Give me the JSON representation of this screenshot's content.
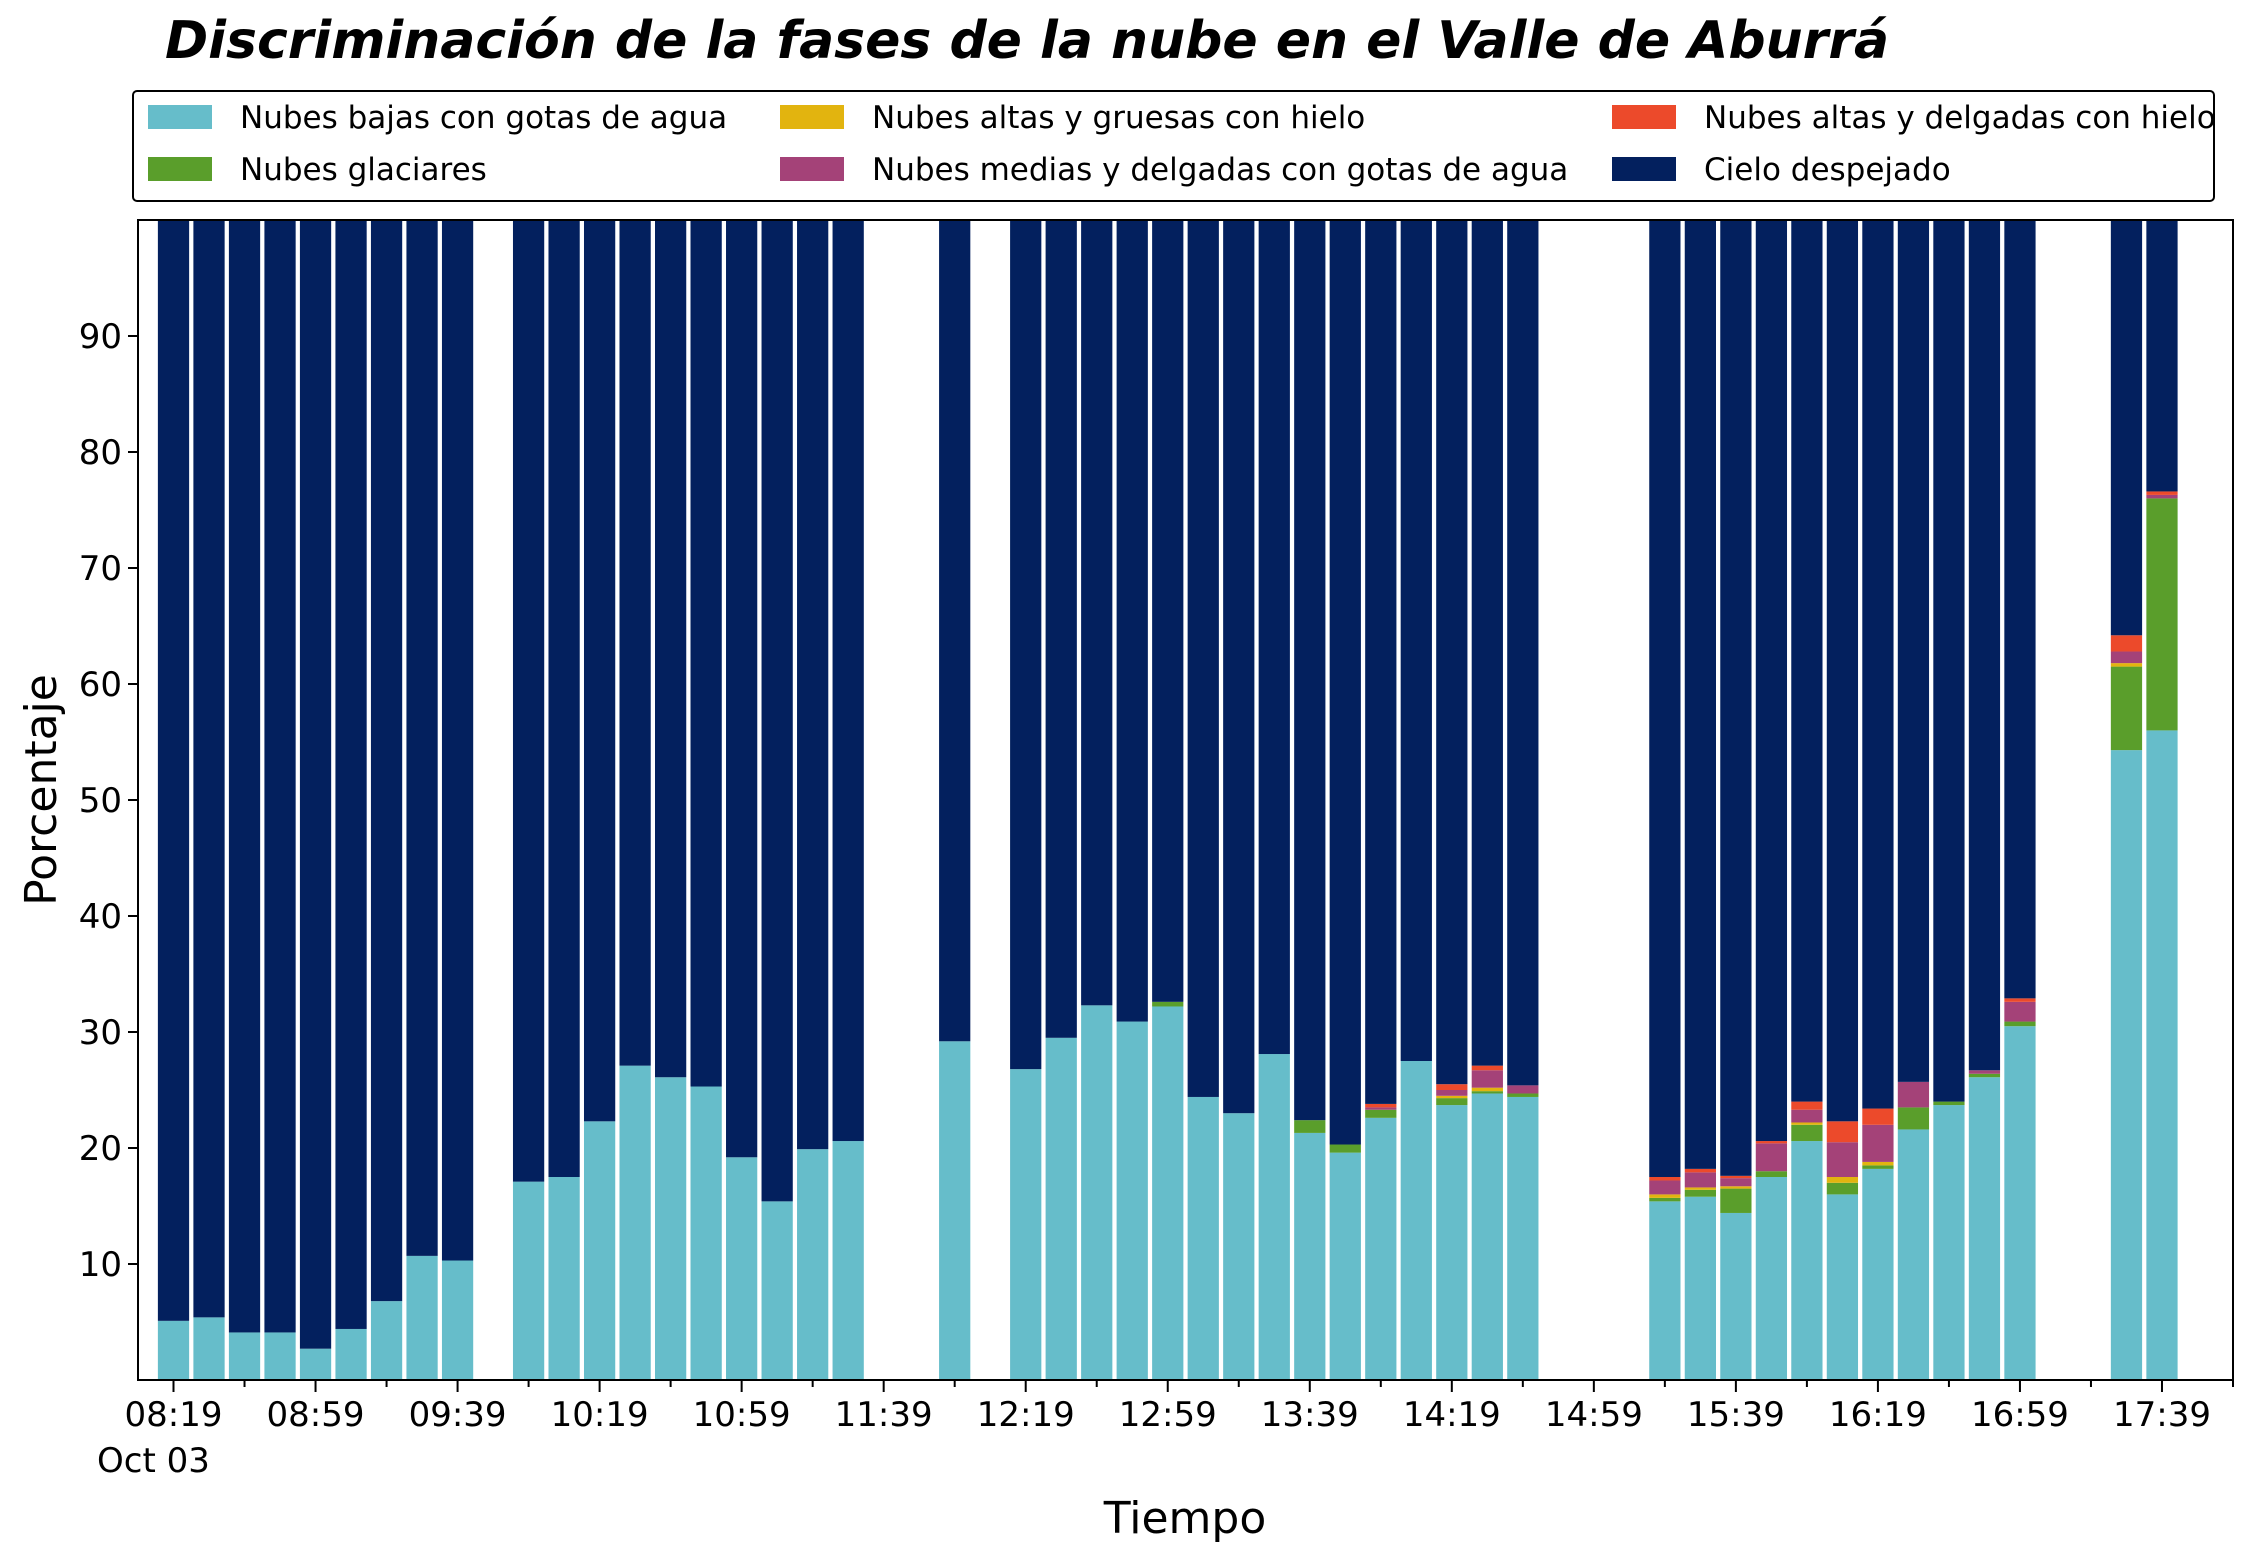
{
  "chart_data": {
    "type": "bar",
    "stacked": true,
    "title": "Discriminación de la fases de la nube en el Valle de Aburrá",
    "xlabel": "Tiempo",
    "ylabel": "Porcentaje",
    "ylim": [
      0,
      100
    ],
    "y_ticks": [
      10,
      20,
      30,
      40,
      50,
      60,
      70,
      80,
      90
    ],
    "x_tick_labels": [
      "08:19",
      "08:59",
      "09:39",
      "10:19",
      "10:59",
      "11:39",
      "12:19",
      "12:59",
      "13:39",
      "14:19",
      "14:59",
      "15:39",
      "16:19",
      "16:59",
      "17:39"
    ],
    "x_date_label": "Oct 03",
    "x_range": [
      "08:09",
      "17:59"
    ],
    "interval_minutes": 10,
    "grid": false,
    "legend_position": "top",
    "legend_columns": 3,
    "series_colors": [
      "#66bdca",
      "#5a9e2b",
      "#e2b40f",
      "#a44278",
      "#ec4a2b",
      "#03205e"
    ],
    "series_names": [
      "Nubes bajas con gotas de agua",
      "Nubes glaciares",
      "Nubes altas y gruesas con hielo",
      "Nubes medias y delgadas con gotas de agua",
      "Nubes altas y delgadas con hielo",
      "Cielo despejado"
    ],
    "legend_order": [
      0,
      2,
      4,
      1,
      3,
      5
    ],
    "bars": [
      {
        "t": "08:19",
        "v": [
          5.1,
          0,
          0,
          0,
          0,
          94.9
        ]
      },
      {
        "t": "08:29",
        "v": [
          5.4,
          0,
          0,
          0,
          0,
          94.6
        ]
      },
      {
        "t": "08:39",
        "v": [
          4.1,
          0,
          0,
          0,
          0,
          95.9
        ]
      },
      {
        "t": "08:49",
        "v": [
          4.1,
          0,
          0,
          0,
          0,
          95.9
        ]
      },
      {
        "t": "08:59",
        "v": [
          2.7,
          0,
          0,
          0,
          0,
          97.3
        ]
      },
      {
        "t": "09:09",
        "v": [
          4.4,
          0,
          0,
          0,
          0,
          95.6
        ]
      },
      {
        "t": "09:19",
        "v": [
          6.8,
          0,
          0,
          0,
          0,
          93.2
        ]
      },
      {
        "t": "09:29",
        "v": [
          10.7,
          0,
          0,
          0,
          0,
          89.3
        ]
      },
      {
        "t": "09:39",
        "v": [
          10.3,
          0,
          0,
          0,
          0,
          89.7
        ]
      },
      {
        "t": "09:59",
        "v": [
          17.1,
          0,
          0,
          0,
          0,
          82.9
        ]
      },
      {
        "t": "10:09",
        "v": [
          17.5,
          0,
          0,
          0,
          0,
          82.5
        ]
      },
      {
        "t": "10:19",
        "v": [
          22.3,
          0,
          0,
          0,
          0,
          77.7
        ]
      },
      {
        "t": "10:29",
        "v": [
          27.1,
          0,
          0,
          0,
          0,
          72.9
        ]
      },
      {
        "t": "10:39",
        "v": [
          26.1,
          0,
          0,
          0,
          0,
          73.9
        ]
      },
      {
        "t": "10:49",
        "v": [
          25.3,
          0,
          0,
          0,
          0,
          74.7
        ]
      },
      {
        "t": "10:59",
        "v": [
          19.2,
          0,
          0,
          0,
          0,
          80.8
        ]
      },
      {
        "t": "11:09",
        "v": [
          15.4,
          0,
          0,
          0,
          0,
          84.6
        ]
      },
      {
        "t": "11:19",
        "v": [
          19.9,
          0,
          0,
          0,
          0,
          80.1
        ]
      },
      {
        "t": "11:29",
        "v": [
          20.6,
          0,
          0,
          0,
          0,
          79.4
        ]
      },
      {
        "t": "11:59",
        "v": [
          29.2,
          0,
          0,
          0,
          0,
          70.8
        ]
      },
      {
        "t": "12:19",
        "v": [
          26.8,
          0,
          0,
          0,
          0,
          73.2
        ]
      },
      {
        "t": "12:29",
        "v": [
          29.5,
          0,
          0,
          0,
          0,
          70.5
        ]
      },
      {
        "t": "12:39",
        "v": [
          32.3,
          0,
          0,
          0,
          0,
          67.7
        ]
      },
      {
        "t": "12:49",
        "v": [
          30.9,
          0,
          0,
          0,
          0,
          69.1
        ]
      },
      {
        "t": "12:59",
        "v": [
          32.2,
          0.4,
          0,
          0,
          0,
          67.4
        ]
      },
      {
        "t": "13:09",
        "v": [
          24.4,
          0,
          0,
          0,
          0,
          75.6
        ]
      },
      {
        "t": "13:19",
        "v": [
          23.0,
          0,
          0,
          0,
          0,
          77.0
        ]
      },
      {
        "t": "13:29",
        "v": [
          28.1,
          0,
          0,
          0,
          0,
          71.9
        ]
      },
      {
        "t": "13:39",
        "v": [
          21.3,
          1.1,
          0,
          0,
          0,
          77.6
        ]
      },
      {
        "t": "13:49",
        "v": [
          19.6,
          0.7,
          0,
          0,
          0,
          79.7
        ]
      },
      {
        "t": "13:59",
        "v": [
          22.6,
          0.7,
          0,
          0.2,
          0.3,
          76.2
        ]
      },
      {
        "t": "14:09",
        "v": [
          27.5,
          0,
          0,
          0,
          0,
          72.5
        ]
      },
      {
        "t": "14:19",
        "v": [
          23.7,
          0.6,
          0.2,
          0.5,
          0.5,
          74.5
        ]
      },
      {
        "t": "14:29",
        "v": [
          24.7,
          0.2,
          0.3,
          1.5,
          0.4,
          72.9
        ]
      },
      {
        "t": "14:39",
        "v": [
          24.4,
          0.3,
          0,
          0.7,
          0,
          74.6
        ]
      },
      {
        "t": "15:19",
        "v": [
          15.4,
          0.3,
          0.3,
          1.2,
          0.3,
          82.5
        ]
      },
      {
        "t": "15:29",
        "v": [
          15.8,
          0.6,
          0.2,
          1.3,
          0.3,
          81.8
        ]
      },
      {
        "t": "15:39",
        "v": [
          14.4,
          2.1,
          0.2,
          0.7,
          0.2,
          82.4
        ]
      },
      {
        "t": "15:49",
        "v": [
          17.5,
          0.5,
          0,
          2.4,
          0.2,
          79.4
        ]
      },
      {
        "t": "15:59",
        "v": [
          20.6,
          1.4,
          0.2,
          1.1,
          0.7,
          76.0
        ]
      },
      {
        "t": "16:09",
        "v": [
          16.0,
          1.0,
          0.5,
          3.0,
          1.8,
          77.7
        ]
      },
      {
        "t": "16:19",
        "v": [
          18.2,
          0.3,
          0.3,
          3.2,
          1.4,
          76.6
        ]
      },
      {
        "t": "16:29",
        "v": [
          21.6,
          1.9,
          0,
          2.2,
          0,
          74.3
        ]
      },
      {
        "t": "16:39",
        "v": [
          23.7,
          0.3,
          0,
          0,
          0,
          76.0
        ]
      },
      {
        "t": "16:49",
        "v": [
          26.1,
          0.3,
          0,
          0.3,
          0,
          73.3
        ]
      },
      {
        "t": "16:59",
        "v": [
          30.5,
          0.4,
          0,
          1.7,
          0.3,
          67.1
        ]
      },
      {
        "t": "17:29",
        "v": [
          54.3,
          7.2,
          0.3,
          1.0,
          1.4,
          35.8
        ]
      },
      {
        "t": "17:39",
        "v": [
          56.0,
          20.0,
          0,
          0.3,
          0.3,
          23.4
        ]
      }
    ]
  }
}
